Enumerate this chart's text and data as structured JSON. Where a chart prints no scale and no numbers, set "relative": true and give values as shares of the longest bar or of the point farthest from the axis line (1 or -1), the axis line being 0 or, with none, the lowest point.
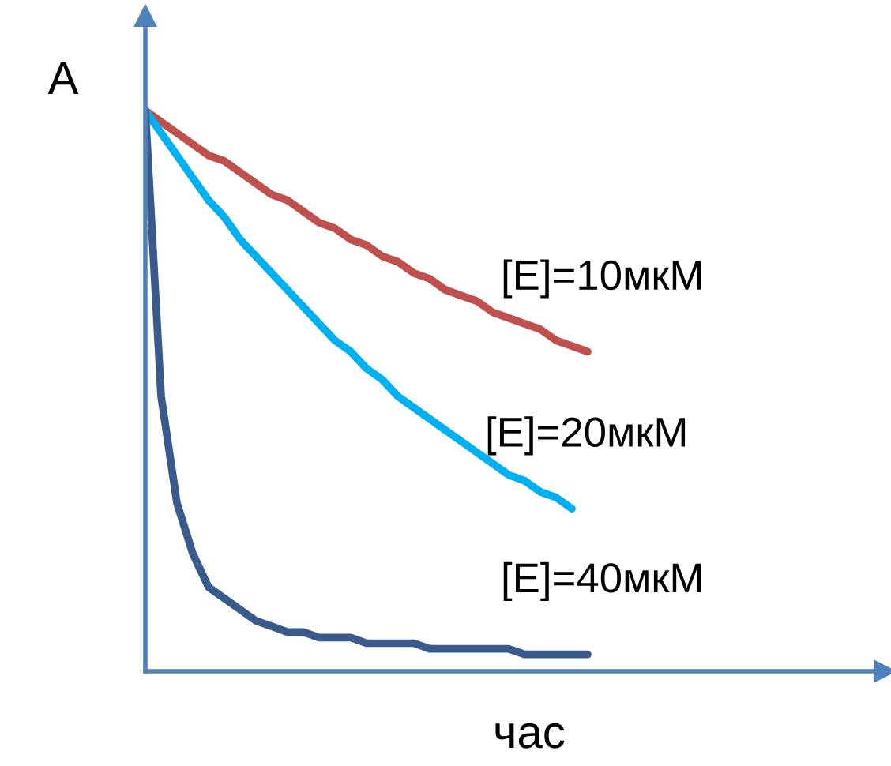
{
  "chart_data": {
    "type": "line",
    "relative": true,
    "xlabel": "час",
    "ylabel": "A",
    "grid": false,
    "legend": false,
    "marker": "none",
    "line_style": "solid",
    "categories": [
      null,
      null,
      null,
      null,
      null,
      null,
      null,
      null,
      null,
      null,
      null,
      null,
      null,
      null,
      null,
      null,
      null,
      null,
      null,
      null,
      null,
      null,
      null,
      null,
      null,
      null,
      null,
      null,
      null
    ],
    "series": [
      {
        "name": "[E]=10мкМ",
        "color": "#c0504d",
        "values": [
          1,
          0.98,
          0.96,
          0.94,
          0.92,
          0.91,
          0.89,
          0.87,
          0.85,
          0.84,
          0.82,
          0.8,
          0.79,
          0.77,
          0.76,
          0.74,
          0.73,
          0.71,
          0.7,
          0.68,
          0.67,
          0.66,
          0.64,
          0.63,
          0.62,
          0.61,
          0.59,
          0.58,
          0.57
        ]
      },
      {
        "name": "[E]=20мкМ",
        "color": "#00b0f0",
        "values": [
          1,
          0.96,
          0.92,
          0.88,
          0.84,
          0.81,
          0.77,
          0.74,
          0.71,
          0.68,
          0.65,
          0.62,
          0.59,
          0.57,
          0.54,
          0.52,
          0.49,
          0.47,
          0.45,
          0.43,
          0.41,
          0.39,
          0.37,
          0.35,
          0.34,
          0.32,
          0.31,
          0.29,
          null
        ]
      },
      {
        "name": "[E]=40мкМ",
        "color": "#3a5a8c",
        "values": [
          1,
          0.49,
          0.3,
          0.21,
          0.15,
          0.13,
          0.11,
          0.09,
          0.08,
          0.07,
          0.07,
          0.06,
          0.06,
          0.06,
          0.05,
          0.05,
          0.05,
          0.05,
          0.04,
          0.04,
          0.04,
          0.04,
          0.04,
          0.04,
          0.03,
          0.03,
          0.03,
          0.03,
          0.03
        ]
      }
    ]
  }
}
